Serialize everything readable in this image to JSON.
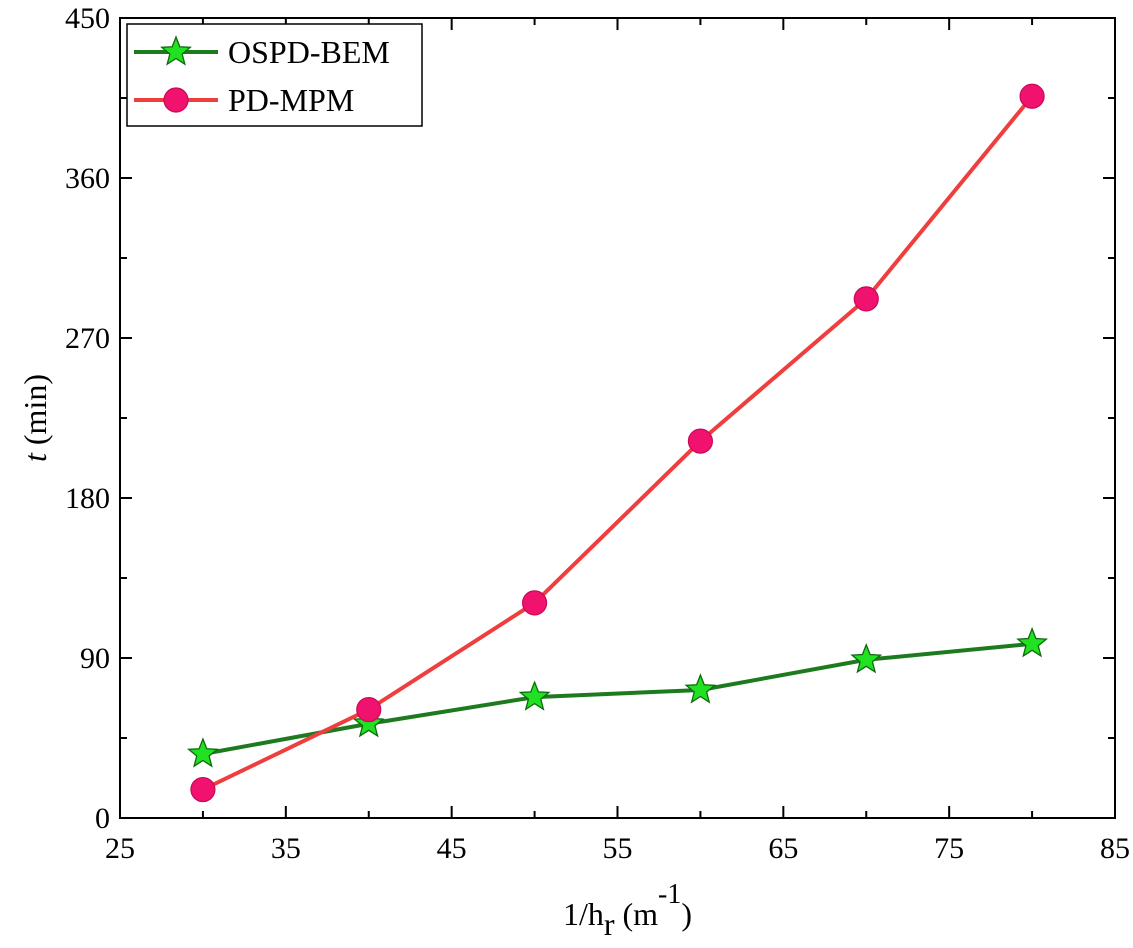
{
  "chart_data": {
    "type": "line",
    "title": "",
    "xlabel": {
      "prefix": "1/h",
      "subscript": "r",
      "units_open": " (m",
      "superscript": "-1",
      "units_close": ")"
    },
    "ylabel": {
      "italic": "t",
      "rest": " (min)"
    },
    "xlim": [
      25,
      85
    ],
    "ylim": [
      0,
      450
    ],
    "x_ticks": [
      25,
      35,
      45,
      55,
      65,
      75,
      85
    ],
    "y_ticks": [
      0,
      90,
      180,
      270,
      360,
      450
    ],
    "x_tick_labels": [
      "25",
      "35",
      "45",
      "55",
      "65",
      "75",
      "85"
    ],
    "y_tick_labels": [
      "0",
      "90",
      "180",
      "270",
      "360",
      "450"
    ],
    "x": [
      30,
      40,
      50,
      60,
      70,
      80
    ],
    "series": [
      {
        "name": "OSPD-BEM",
        "values": [
          36,
          53,
          68,
          72,
          89,
          98
        ],
        "line_color": "#1e7a1e",
        "marker": "star",
        "marker_color": "#22e022"
      },
      {
        "name": "PD-MPM",
        "values": [
          16,
          61,
          121,
          212,
          292,
          406
        ],
        "line_color": "#ef3e3e",
        "marker": "circle",
        "marker_color": "#f0126e"
      }
    ],
    "legend_position": "top-left",
    "grid": false
  }
}
